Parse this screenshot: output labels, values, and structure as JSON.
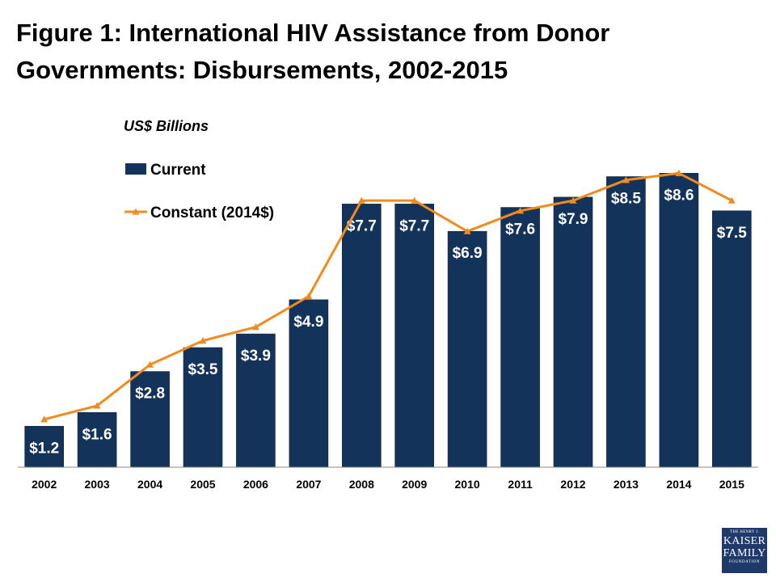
{
  "title_line1": "Figure 1: International HIV Assistance from Donor",
  "title_line2": "Governments: Disbursements, 2002-2015",
  "logo": {
    "line1": "THE HENRY J.",
    "line2": "KAISER",
    "line3": "FAMILY",
    "line4": "FOUNDATION"
  },
  "colors": {
    "bar": "#14335a",
    "line": "#f08c1e",
    "label_text": "#ffffff"
  },
  "chart_data": {
    "type": "bar",
    "title": "Figure 1: International HIV Assistance from Donor Governments: Disbursements, 2002-2015",
    "unit_label": "US$ Billions",
    "categories": [
      "2002",
      "2003",
      "2004",
      "2005",
      "2006",
      "2007",
      "2008",
      "2009",
      "2010",
      "2011",
      "2012",
      "2013",
      "2014",
      "2015"
    ],
    "series": [
      {
        "name": "Current",
        "type": "bar",
        "values": [
          1.2,
          1.6,
          2.8,
          3.5,
          3.9,
          4.9,
          7.7,
          7.7,
          6.9,
          7.6,
          7.9,
          8.5,
          8.6,
          7.5
        ],
        "labels": [
          "$1.2",
          "$1.6",
          "$2.8",
          "$3.5",
          "$3.9",
          "$4.9",
          "$7.7",
          "$7.7",
          "$6.9",
          "$7.6",
          "$7.9",
          "$8.5",
          "$8.6",
          "$7.5"
        ]
      },
      {
        "name": "Constant (2014$)",
        "type": "line",
        "marker": "triangle",
        "values": [
          1.4,
          1.8,
          3.0,
          3.7,
          4.1,
          5.0,
          7.8,
          7.8,
          6.9,
          7.5,
          7.8,
          8.4,
          8.6,
          7.8
        ]
      }
    ],
    "ylim": [
      0,
      9.6
    ],
    "grid": false,
    "legend": "top-left"
  }
}
